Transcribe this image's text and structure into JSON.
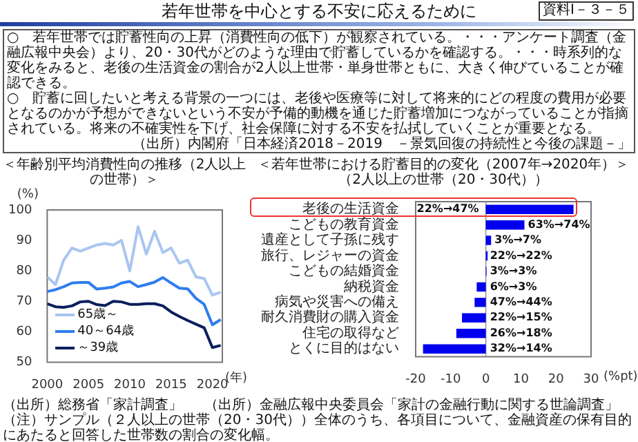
{
  "chart_data": [
    {
      "type": "other",
      "title": "若年世帯を中心とする不安に応えるために",
      "annotations": [
        "資料Ⅰ－３－５",
        "○　若年世帯では貯蓄性向の上昇（消費性向の低下）が観察されている。・・・アンケート調査（金融広報中央会）より、20・30代がどのような理由で貯蓄しているかを確認する。・・・時系列的な変化をみると、老後の生活資金の割合が2人以上世帯・単身世帯ともに、大きく伸びていることが確認できる。",
        "○　貯蓄に回したいと考える背景の一つには、老後や医療等に対して将来的にどの程度の費用が必要となるのかが予想ができないという不安が予備的動機を通じた貯蓄増加につながっていることが指摘されている。将来の不確実性を下げ、社会保障に対する不安を払拭していくことが重要となる。",
        "（出所）内閣府「日本経済2018－2019　－景気回復の持続性と今後の課題－」"
      ]
    },
    {
      "type": "line",
      "title": "＜年齢別平均消費性向の推移（2人以上の世帯）＞",
      "ylabel": "(%)",
      "xlabel": "(年)",
      "x": [
        2000,
        2001,
        2002,
        2003,
        2004,
        2005,
        2006,
        2007,
        2008,
        2009,
        2010,
        2011,
        2012,
        2013,
        2014,
        2015,
        2016,
        2017,
        2018,
        2019,
        2020,
        2021
      ],
      "series": [
        {
          "name": "65歳～",
          "color": "#a9c6f0",
          "values": [
            78,
            75.5,
            83.5,
            87.5,
            86.5,
            87.5,
            88.5,
            89,
            88.5,
            90,
            80,
            94.5,
            85.5,
            93,
            86,
            87.5,
            82.5,
            83.5,
            78,
            77.5,
            72,
            73
          ]
        },
        {
          "name": "40～64歳",
          "color": "#2f7df0",
          "values": [
            73.2,
            73.8,
            74.8,
            76,
            76.2,
            76.2,
            74,
            74.3,
            74.7,
            76,
            76.5,
            74.8,
            75.5,
            76.3,
            77.8,
            76,
            74.3,
            74.1,
            71,
            69,
            62.3,
            64
          ]
        },
        {
          "name": "～39歳",
          "color": "#0a1f5c",
          "values": [
            69.2,
            68.2,
            68,
            68.5,
            69.8,
            70,
            68.9,
            68.6,
            70,
            69.8,
            69,
            69,
            69.2,
            69.2,
            68.5,
            66.5,
            65,
            63.7,
            62.5,
            61.3,
            54.8,
            55.5
          ]
        }
      ],
      "xlim": [
        2000,
        2021.2
      ],
      "xticks": [
        2000,
        2005,
        2010,
        2015,
        2020
      ],
      "ylim": [
        50,
        100
      ],
      "yticks": [
        50,
        60,
        70,
        80,
        90,
        100
      ],
      "grid": false,
      "legend": "bottom left",
      "annotations": [
        "（出所）総務省「家計調査」"
      ]
    },
    {
      "type": "bar",
      "orientation": "horizontal",
      "title": "＜若年世帯における貯蓄目的の変化（2007年→2020年）＞",
      "subtitle": "（2人以上の世帯（20・30代））",
      "xlabel": "(%pt)",
      "categories": [
        "老後の生活資金",
        "こどもの教育資金",
        "遺産として子孫に残す",
        "旅行、レジャーの資金",
        "こどもの結婚資金",
        "納税資金",
        "病気や災害への備え",
        "耐久消費財の購入資金",
        "住宅の取得など",
        "とくに目的はない"
      ],
      "values": [
        25,
        11,
        1.5,
        0.5,
        0.2,
        -2.6,
        -3.2,
        -6.8,
        -8.4,
        -17.9
      ],
      "color": "#0000ee",
      "xlim": [
        -20,
        30
      ],
      "xticks": [
        -20,
        -10,
        0,
        10,
        20,
        30
      ],
      "grid": false,
      "ref_lines": [
        {
          "axis": "x",
          "value": 0
        }
      ],
      "annotations": [
        "（出所）金融広報中央委員会「家計の金融行動に関する世論調査」",
        "（注）サンプル（２人以上の世帯（20・30代））全体のうち、各項目について、金融資産の保有目的にあたると回答した世帯数の割合の変化幅。",
        {
          "text": "22%→47%",
          "x": 0,
          "y": "老後の生活資金"
        },
        {
          "text": "63%→74%",
          "x": 12,
          "y": "こどもの教育資金"
        },
        {
          "text": "3%→7%",
          "x": 2.5,
          "y": "遺産として子孫に残す"
        },
        {
          "text": "22%→22%",
          "x": 1.2,
          "y": "旅行、レジャーの資金"
        },
        {
          "text": "3%→3%",
          "x": 1.2,
          "y": "こどもの結婚資金"
        },
        {
          "text": "6%→3%",
          "x": 1.2,
          "y": "納税資金"
        },
        {
          "text": "47%→44%",
          "x": 1.2,
          "y": "病気や災害への備え"
        },
        {
          "text": "22%→15%",
          "x": 1.2,
          "y": "耐久消費財の購入資金"
        },
        {
          "text": "26%→18%",
          "x": 1.2,
          "y": "住宅の取得など"
        },
        {
          "text": "32%→14%",
          "x": 1.2,
          "y": "とくに目的はない"
        }
      ]
    }
  ]
}
